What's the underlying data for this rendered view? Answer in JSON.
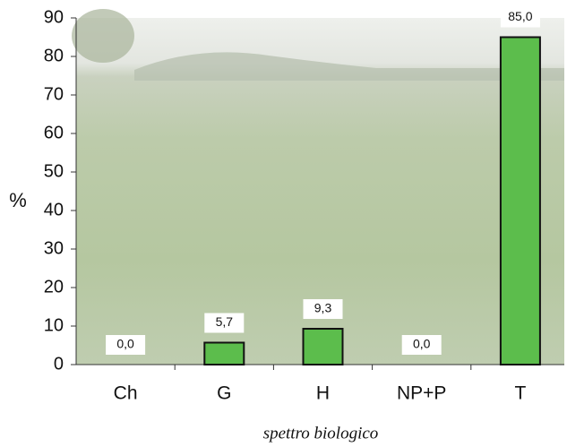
{
  "chart_data": {
    "type": "bar",
    "ylabel": "%",
    "xlabel": "spettro biologico",
    "categories": [
      "Ch",
      "G",
      "H",
      "NP+P",
      "T"
    ],
    "values": [
      0,
      5.7,
      9.3,
      0,
      85
    ],
    "value_labels": [
      "0,0",
      "5,7",
      "9,3",
      "0,0",
      "85,0"
    ],
    "color": "#5cbd4c",
    "ylim": [
      0,
      90
    ],
    "yticks": [
      0,
      10,
      20,
      30,
      40,
      50,
      60,
      70,
      80,
      90
    ]
  }
}
